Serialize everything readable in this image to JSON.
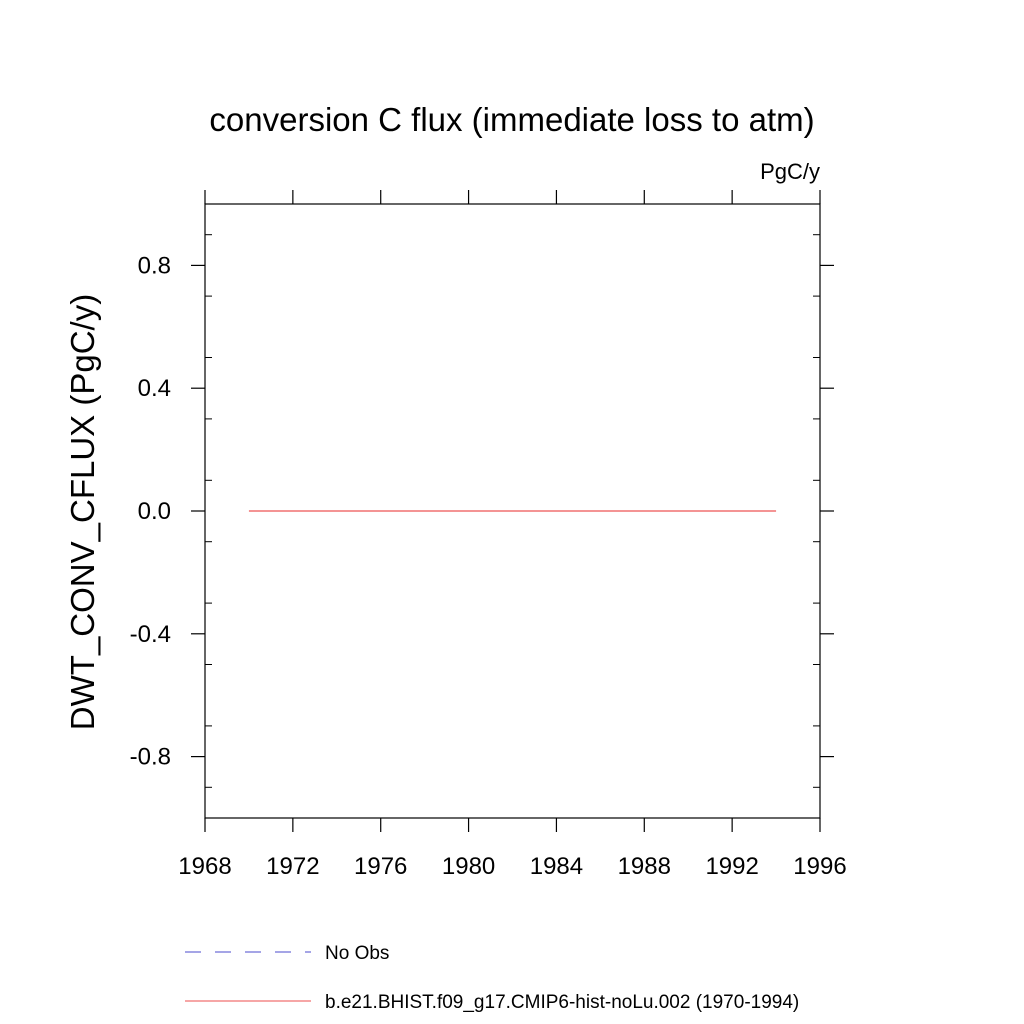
{
  "chart_data": {
    "type": "line",
    "title": "conversion C flux (immediate loss to atm)",
    "units": "PgC/y",
    "ylabel": "DWT_CONV_CFLUX  (PgC/y)",
    "xlabel": "",
    "xlim": [
      1968,
      1996
    ],
    "ylim": [
      -1.0,
      1.0
    ],
    "x_ticks": [
      1968,
      1972,
      1976,
      1980,
      1984,
      1988,
      1992,
      1996
    ],
    "x_tick_labels": [
      "1968",
      "1972",
      "1976",
      "1980",
      "1984",
      "1988",
      "1992",
      "1996"
    ],
    "y_ticks": [
      0.8,
      0.4,
      0.0,
      -0.4,
      -0.8
    ],
    "y_tick_labels": [
      "0.8",
      "0.4",
      "0.0",
      "-0.4",
      "-0.8"
    ],
    "grid": false,
    "legend_position": "bottom",
    "series": [
      {
        "name": "No Obs",
        "color": "#6f6fd6",
        "style": "dashed",
        "x": [],
        "values": []
      },
      {
        "name": "b.e21.BHIST.f09_g17.CMIP6-hist-noLu.002 (1970-1994)",
        "color": "#f07070",
        "style": "solid",
        "x": [
          1970,
          1971,
          1972,
          1973,
          1974,
          1975,
          1976,
          1977,
          1978,
          1979,
          1980,
          1981,
          1982,
          1983,
          1984,
          1985,
          1986,
          1987,
          1988,
          1989,
          1990,
          1991,
          1992,
          1993,
          1994
        ],
        "values": [
          0,
          0,
          0,
          0,
          0,
          0,
          0,
          0,
          0,
          0,
          0,
          0,
          0,
          0,
          0,
          0,
          0,
          0,
          0,
          0,
          0,
          0,
          0,
          0,
          0
        ]
      }
    ]
  }
}
